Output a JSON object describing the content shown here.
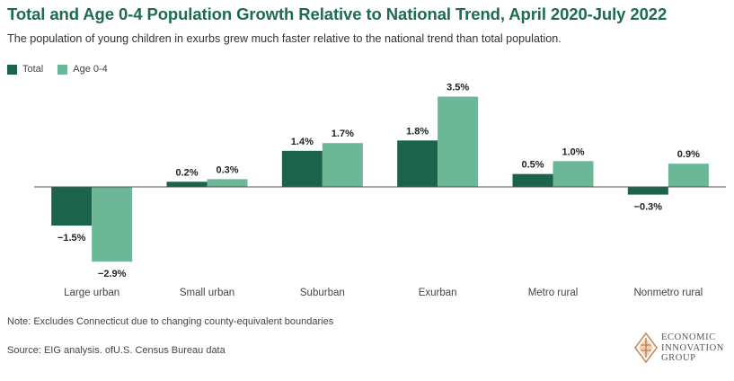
{
  "title": "Total and Age 0-4 Population Growth Relative to National Trend, April 2020-July 2022",
  "subtitle": "The population of young children in exurbs grew much faster relative to the national trend than total population.",
  "note": "Note: Excludes Connecticut due to changing county-equivalent boundaries",
  "source": "Source: EIG analysis. ofU.S. Census Bureau data",
  "logo": {
    "line1": "ECONOMIC",
    "line2": "INNOVATION",
    "line3": "GROUP",
    "icon": "eig-diamond-logo-icon"
  },
  "colors": {
    "total": "#1b644b",
    "age04": "#6cb797",
    "title": "#1e6b4f",
    "axis": "#555555"
  },
  "chart_data": {
    "type": "bar",
    "categories": [
      "Large urban",
      "Small urban",
      "Suburban",
      "Exurban",
      "Metro rural",
      "Nonmetro rural"
    ],
    "series": [
      {
        "name": "Total",
        "values": [
          -1.5,
          0.2,
          1.4,
          1.8,
          0.5,
          -0.3
        ],
        "labels": [
          "−1.5%",
          "0.2%",
          "1.4%",
          "1.8%",
          "0.5%",
          "−0.3%"
        ]
      },
      {
        "name": "Age 0-4",
        "values": [
          -2.9,
          0.3,
          1.7,
          3.5,
          1.0,
          0.9
        ],
        "labels": [
          "−2.9%",
          "0.3%",
          "1.7%",
          "3.5%",
          "1.0%",
          "0.9%"
        ]
      }
    ],
    "ylim": [
      -3.0,
      3.6
    ],
    "grid": false,
    "legend": "top-left"
  }
}
